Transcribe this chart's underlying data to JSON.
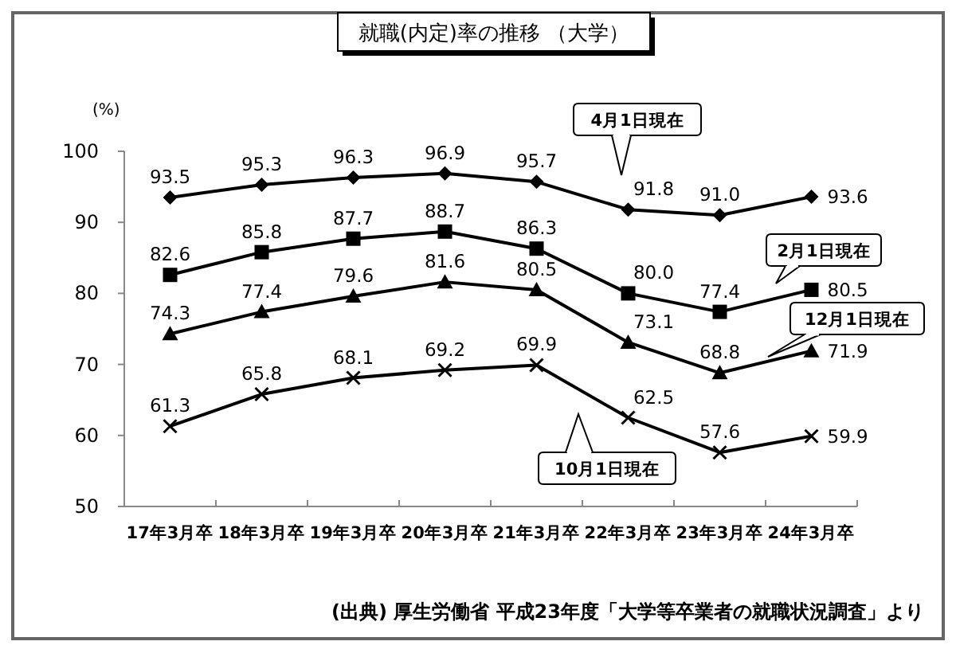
{
  "chart_data": {
    "type": "line",
    "title": "就職(内定)率の推移 （大学）",
    "ylabel": "(%)",
    "categories": [
      "17年3月卒",
      "18年3月卒",
      "19年3月卒",
      "20年3月卒",
      "21年3月卒",
      "22年3月卒",
      "23年3月卒",
      "24年3月卒"
    ],
    "series": [
      {
        "name": "4月1日現在",
        "color": "#000000",
        "marker": "diamond",
        "values": [
          93.5,
          95.3,
          96.3,
          96.9,
          95.7,
          91.8,
          91.0,
          93.6
        ],
        "value_labels": [
          "93.5",
          "95.3",
          "96.3",
          "96.9",
          "95.7",
          "91.8",
          "91.0",
          "93.6"
        ]
      },
      {
        "name": "2月1日現在",
        "color": "#000000",
        "marker": "square",
        "values": [
          82.6,
          85.8,
          87.7,
          88.7,
          86.3,
          80.0,
          77.4,
          80.5
        ],
        "value_labels": [
          "82.6",
          "85.8",
          "87.7",
          "88.7",
          "86.3",
          "80.0",
          "77.4",
          "80.5"
        ]
      },
      {
        "name": "12月1日現在",
        "color": "#000000",
        "marker": "triangle",
        "values": [
          74.3,
          77.4,
          79.6,
          81.6,
          80.5,
          73.1,
          68.8,
          71.9
        ],
        "value_labels": [
          "74.3",
          "77.4",
          "79.6",
          "81.6",
          "80.5",
          "73.1",
          "68.8",
          "71.9"
        ]
      },
      {
        "name": "10月1日現在",
        "color": "#000000",
        "marker": "cross",
        "values": [
          61.3,
          65.8,
          68.1,
          69.2,
          69.9,
          62.5,
          57.6,
          59.9
        ],
        "value_labels": [
          "61.3",
          "65.8",
          "68.1",
          "69.2",
          "69.9",
          "62.5",
          "57.6",
          "59.9"
        ]
      }
    ],
    "ylim": [
      50,
      100
    ],
    "yticks": [
      50,
      60,
      70,
      80,
      90,
      100
    ],
    "annotations": [
      "(出典) 厚生労働省 平成23年度「大学等卒業者の就職状況調査」より"
    ]
  }
}
